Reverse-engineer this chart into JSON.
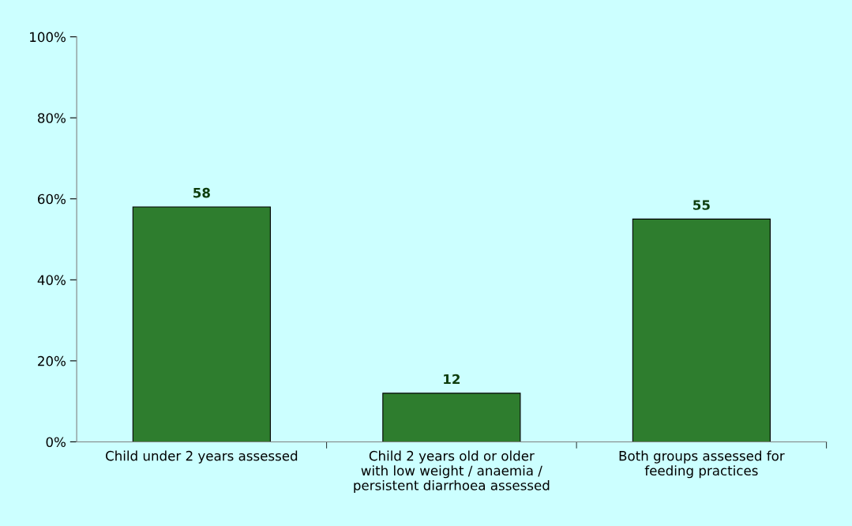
{
  "chart_data": {
    "type": "bar",
    "categories": [
      "Child under 2 years assessed",
      "Child 2 years old or older\nwith low weight / anaemia /\npersistent diarrhoea assessed",
      "Both groups assessed for\nfeeding practices"
    ],
    "values": [
      58,
      12,
      55
    ],
    "color": "#2e7d2e",
    "ylim": [
      0,
      100
    ],
    "yticks": [
      {
        "value": 0,
        "label": "0%"
      },
      {
        "value": 20,
        "label": "20%"
      },
      {
        "value": 40,
        "label": "40%"
      },
      {
        "value": 60,
        "label": "60%"
      },
      {
        "value": 80,
        "label": "80%"
      },
      {
        "value": 100,
        "label": "100%"
      }
    ],
    "data_labels": true,
    "grid": false,
    "legend": false
  }
}
